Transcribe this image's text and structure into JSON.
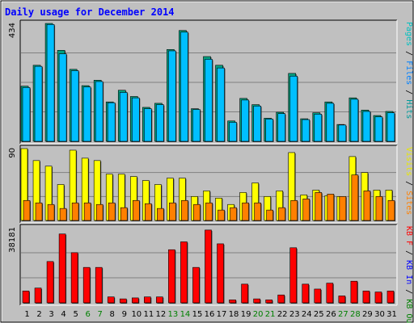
{
  "chart_data": {
    "type": "bar",
    "title": "Daily usage for December 2014",
    "categories": [
      "1",
      "2",
      "3",
      "4",
      "5",
      "6",
      "7",
      "8",
      "9",
      "10",
      "11",
      "12",
      "13",
      "14",
      "15",
      "16",
      "17",
      "18",
      "19",
      "20",
      "21",
      "22",
      "23",
      "24",
      "25",
      "26",
      "27",
      "28",
      "29",
      "30",
      "31"
    ],
    "weekend_days": [
      "6",
      "7",
      "13",
      "14",
      "20",
      "21",
      "27",
      "28"
    ],
    "panels": [
      {
        "max_label": "434",
        "ymax": 434,
        "axis_labels": [
          {
            "text": "Pages",
            "color": "#00c0c0"
          },
          {
            "text": "Files",
            "color": "#0080ff"
          },
          {
            "text": "Hits",
            "color": "#009a9a"
          }
        ],
        "series": [
          {
            "name": "Hits",
            "color": "#00a080",
            "values": [
              203,
              280,
              434,
              335,
              265,
              205,
              225,
              145,
              188,
              165,
              125,
              140,
              338,
              408,
              120,
              312,
              280,
              75,
              158,
              135,
              85,
              107,
              250,
              83,
              105,
              145,
              62,
              160,
              115,
              95,
              110
            ]
          },
          {
            "name": "Files",
            "color": "#00bfff",
            "values": [
              198,
              276,
              430,
              322,
              260,
              200,
              220,
              142,
              180,
              160,
              120,
              135,
              333,
              402,
              117,
              302,
              270,
              70,
              152,
              130,
              82,
              102,
              240,
              80,
              100,
              140,
              60,
              155,
              110,
              90,
              105
            ]
          },
          {
            "name": "Pages",
            "color": "#00c0c0",
            "values": [
              0,
              0,
              0,
              0,
              0,
              0,
              0,
              0,
              0,
              0,
              0,
              0,
              0,
              0,
              0,
              0,
              0,
              0,
              0,
              0,
              0,
              0,
              0,
              0,
              0,
              0,
              0,
              0,
              0,
              0,
              0
            ]
          }
        ]
      },
      {
        "max_label": "90",
        "ymax": 90,
        "axis_labels": [
          {
            "text": "Visits",
            "color": "#e8e800"
          },
          {
            "text": "Sites",
            "color": "#ff8000"
          }
        ],
        "series": [
          {
            "name": "Visits",
            "color": "#ffff00",
            "values": [
              90,
              75,
              68,
              45,
              88,
              78,
              75,
              58,
              58,
              55,
              50,
              45,
              53,
              53,
              30,
              37,
              28,
              20,
              35,
              47,
              30,
              37,
              85,
              32,
              38,
              31,
              30,
              80,
              60,
              38,
              38
            ]
          },
          {
            "name": "Sites",
            "color": "#ff8000",
            "values": [
              25,
              22,
              20,
              15,
              22,
              22,
              20,
              22,
              16,
              25,
              21,
              15,
              22,
              25,
              20,
              22,
              13,
              16,
              22,
              22,
              13,
              16,
              25,
              27,
              35,
              33,
              30,
              57,
              37,
              30,
              25
            ]
          }
        ]
      },
      {
        "max_label": "38181",
        "ymax": 38181,
        "axis_labels": [
          {
            "text": "KB F",
            "color": "#ff0000"
          },
          {
            "text": "KB In",
            "color": "#0000ff"
          },
          {
            "text": "KB Out",
            "color": "#008000"
          }
        ],
        "series": [
          {
            "name": "KB F",
            "color": "#ff0000",
            "values": [
              6000,
              7500,
              21000,
              35000,
              25500,
              18000,
              18000,
              3000,
              2000,
              2500,
              3000,
              3000,
              27000,
              31000,
              18000,
              37000,
              30000,
              1500,
              9500,
              2000,
              1500,
              4000,
              28000,
              9500,
              7000,
              10000,
              3500,
              11000,
              6000,
              5500,
              6000
            ]
          }
        ]
      }
    ]
  }
}
